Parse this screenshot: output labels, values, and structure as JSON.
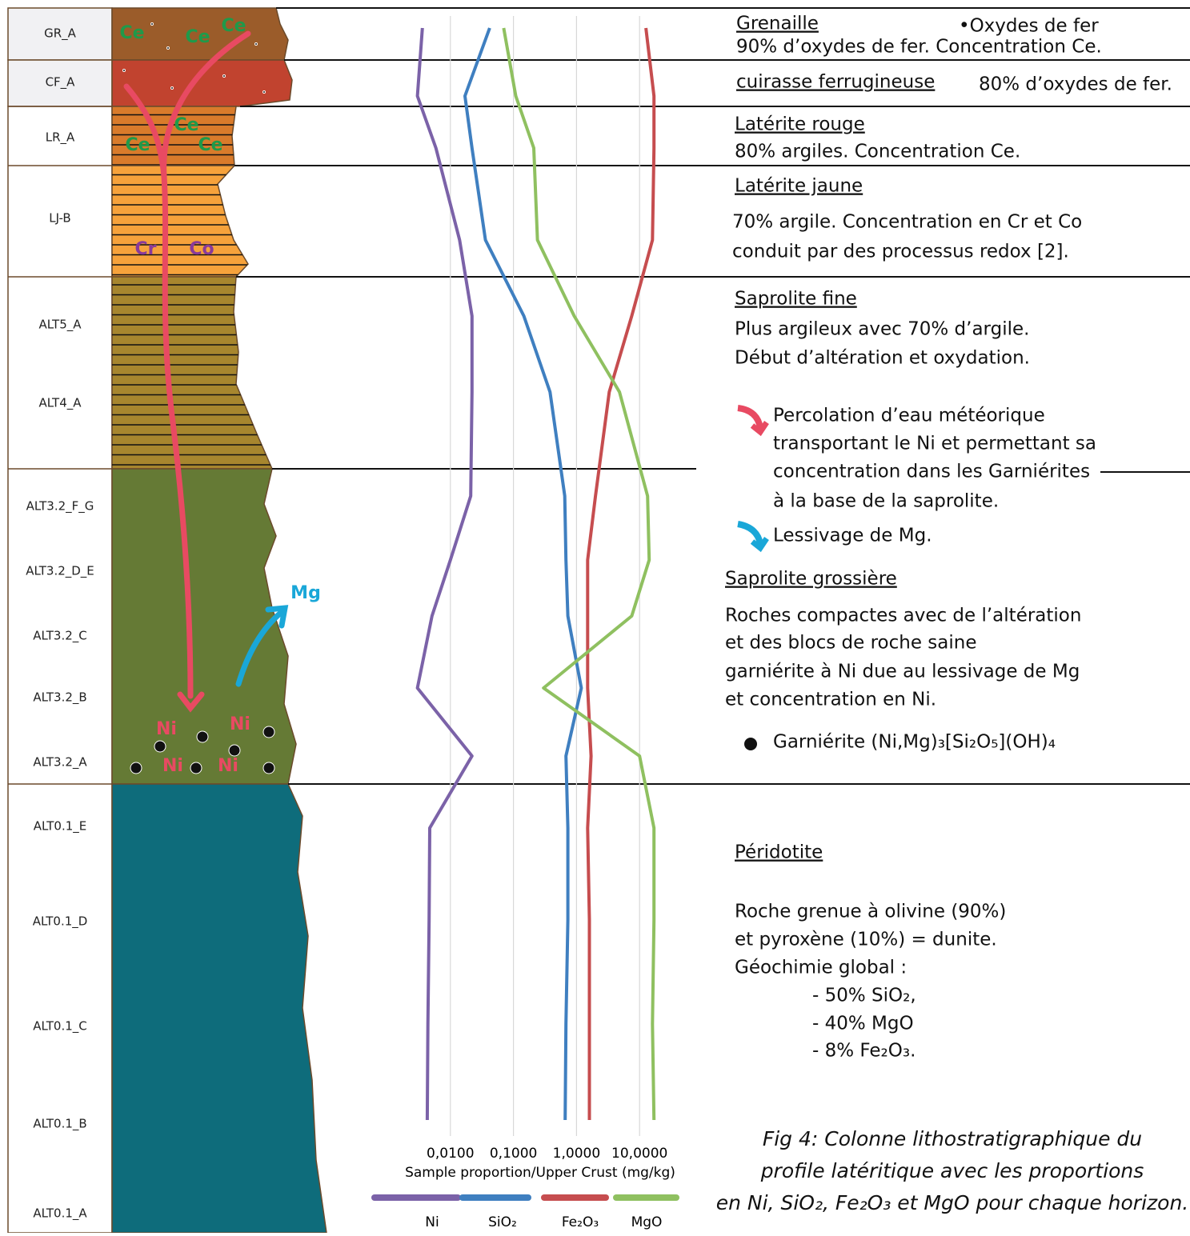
{
  "chart_data": {
    "type": "line",
    "orientation": "vertical",
    "log_scale": true,
    "x_label": "Sample proportion/Upper Crust (mg/kg)",
    "categories": [
      "GR_A",
      "CF_A",
      "LR_A",
      "LJ-B",
      "ALT5_A",
      "ALT4_A",
      "ALT3.2_F_G",
      "ALT3.2_D_E",
      "ALT3.2_C",
      "ALT3.2_B",
      "ALT3.2_A",
      "ALT0.1_E",
      "ALT0.1_D",
      "ALT0.1_C",
      "ALT0.1_B",
      "ALT0.1_A"
    ],
    "xlim": [
      0.001,
      100
    ],
    "xticks": [
      {
        "value": 0.01,
        "label": "0,0100"
      },
      {
        "value": 0.1,
        "label": "0,1000"
      },
      {
        "value": 1,
        "label": "1,0000"
      },
      {
        "value": 10,
        "label": "10,0000"
      }
    ],
    "grid": true,
    "series": [
      {
        "name": "Ni",
        "color": "#7b62a8",
        "values": [
          0.0036,
          0.003,
          0.0059,
          0.014,
          0.022,
          0.022,
          0.021,
          0.01,
          0.0051,
          0.003,
          0.022,
          0.0047,
          0.0046,
          0.0044,
          0.0043,
          null
        ]
      },
      {
        "name": "SiO₂",
        "color": "#3f7fc0",
        "values": [
          0.042,
          0.017,
          0.022,
          0.036,
          0.146,
          0.38,
          0.65,
          0.68,
          0.73,
          1.19,
          0.68,
          0.73,
          0.73,
          0.68,
          0.66,
          null
        ]
      },
      {
        "name": "Fe₂O₃",
        "color": "#c64d4f",
        "values": [
          12.6,
          16.9,
          16.9,
          16.0,
          7.5,
          3.3,
          2.0,
          1.5,
          1.5,
          1.5,
          1.7,
          1.5,
          1.6,
          1.6,
          1.6,
          null
        ]
      },
      {
        "name": "MgO",
        "color": "#8fc060",
        "values": [
          0.07,
          0.109,
          0.21,
          0.24,
          0.92,
          4.8,
          13.4,
          14.2,
          7.5,
          0.3,
          10.0,
          16.9,
          16.9,
          16.0,
          16.9,
          null
        ]
      }
    ]
  },
  "column_labels": [
    "Ce",
    "Ce",
    "Ce",
    "Ce",
    "Ce",
    "Ce",
    "Cr",
    "Co",
    "Mg",
    "Ni",
    "Ni",
    "Ni",
    "Ni"
  ],
  "headings": [
    "Grenaille",
    "cuirasse ferrugineuse",
    "Latérite rouge",
    "Latérite jaune",
    "Saprolite fine",
    "Saprolite grossière",
    "Péridotite"
  ],
  "notes": [
    "•Oxydes de fer",
    "90% d’oxydes de fer.  Concentration Ce.",
    "80% d’oxydes de fer.",
    "80% argiles.  Concentration Ce.",
    "70% argile.  Concentration en Cr et Co",
    "conduit par des processus redox [2].",
    "Plus argileux avec 70% d’argile.",
    "Début d’altération et oxydation.",
    "Percolation d’eau météorique",
    "transportant le Ni et permettant sa",
    "concentration dans les Garniérites",
    "à la base de la saprolite.",
    "Lessivage de Mg.",
    "Roches compactes avec de l’altération",
    "et des blocs de roche saine",
    "garniérite à Ni due au lessivage de Mg",
    "et concentration en Ni.",
    "Garniérite (Ni,Mg)₃[Si₂O₅](OH)₄",
    "Roche grenue à olivine (90%)",
    "et pyroxène (10%) = dunite.",
    "Géochimie global :",
    "- 50% SiO₂,",
    "- 40% MgO",
    "- 8% Fe₂O₃."
  ],
  "caption": [
    "Fig 4: Colonne lithostratigraphique du",
    "profile latéritique avec les proportions",
    "en Ni, SiO₂, Fe₂O₃ et MgO pour chaque horizon."
  ]
}
